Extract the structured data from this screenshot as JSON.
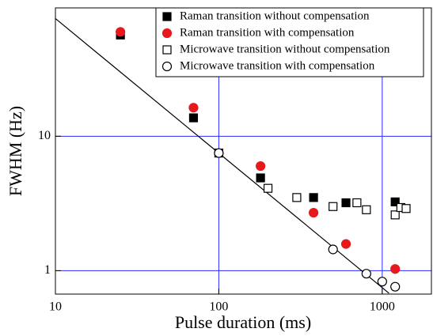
{
  "chart_data": {
    "type": "scatter",
    "xlabel": "Pulse duration (ms)",
    "ylabel": "FWHM (Hz)",
    "xlog": true,
    "ylog": true,
    "xlim": [
      10,
      2000
    ],
    "ylim": [
      0.67,
      90
    ],
    "xticks": [
      10,
      100,
      1000
    ],
    "yticks": [
      1,
      10
    ],
    "grid": true,
    "grid_color": "#2a2aff",
    "legend": "upper right",
    "series": [
      {
        "name": "Raman transition without compensation",
        "color": "#000000",
        "marker": "square",
        "filled": true,
        "x": [
          25,
          70,
          180,
          380,
          600,
          1200
        ],
        "values": [
          56.6,
          13.7,
          4.9,
          3.5,
          3.2,
          3.25
        ]
      },
      {
        "name": "Raman transition with compensation",
        "color": "#e8191c",
        "marker": "circle",
        "filled": true,
        "x": [
          25,
          70,
          180,
          380,
          600,
          1200
        ],
        "values": [
          59.7,
          16.3,
          6.0,
          2.7,
          1.58,
          1.03
        ]
      },
      {
        "name": "Microwave transition without compensation",
        "color": "#000000",
        "marker": "square",
        "filled": false,
        "x": [
          100,
          200,
          300,
          500,
          700,
          800,
          1200,
          1300,
          1400
        ],
        "values": [
          7.5,
          4.1,
          3.5,
          3.0,
          3.2,
          2.84,
          2.6,
          2.95,
          2.9
        ]
      },
      {
        "name": "Microwave transition with compensation",
        "color": "#000000",
        "marker": "circle",
        "filled": false,
        "x": [
          100,
          500,
          800,
          1000,
          1200
        ],
        "values": [
          7.5,
          1.44,
          0.95,
          0.83,
          0.76
        ]
      }
    ],
    "reference_line": {
      "color": "#000000",
      "x": [
        10,
        1100
      ],
      "values": [
        75,
        0.68
      ]
    }
  }
}
